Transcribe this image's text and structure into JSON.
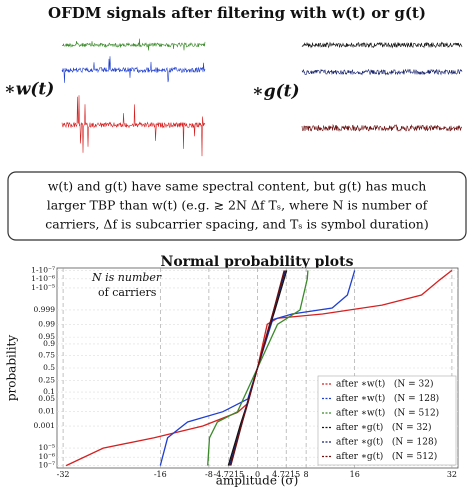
{
  "header": {
    "title": "OFDM signals after filtering with w(t) or g(t)",
    "left_label": "∗w(t)",
    "right_label": "∗g(t)"
  },
  "note": {
    "lines": [
      "w(t) and g(t) have same spectral content, but g(t) has much",
      "larger TBP than w(t)  (e.g. ≳ 2N Δf Tₛ, where N is number of",
      "carriers, Δf is subcarrier spacing, and Tₛ is symbol duration)"
    ]
  },
  "chart_data": {
    "type": "line",
    "title": "Normal probability plots",
    "xlabel": "amplitude (σ)",
    "ylabel": "probability",
    "annotations": [
      "N is number",
      "of carriers"
    ],
    "xlim": [
      -33,
      33
    ],
    "xticks": [
      -32,
      -16,
      -8,
      -4.7215,
      0,
      4.7215,
      8,
      16,
      32
    ],
    "ylim": [
      5e-08,
      0.99999995
    ],
    "yscale": "probit",
    "grid": true,
    "legend": "lower right",
    "yticks": [
      {
        "value": 1e-07,
        "label": "10⁻⁷"
      },
      {
        "value": 1e-06,
        "label": "10⁻⁶"
      },
      {
        "value": 1e-05,
        "label": "10⁻⁵"
      },
      0.001,
      0.01,
      0.05,
      0.1,
      0.25,
      0.5,
      0.75,
      0.9,
      0.95,
      0.99,
      0.999,
      {
        "value": 0.99999,
        "label": "1-10⁻⁵"
      },
      {
        "value": 0.999999,
        "label": "1-10⁻⁶"
      },
      {
        "value": 0.9999999,
        "label": "1-10⁻⁷"
      }
    ],
    "series": [
      {
        "name": "after ∗w(t)   (N = 32)",
        "color": "#d62020",
        "x": [
          -31.5,
          -25.4,
          -17,
          -9,
          -3.3,
          -1.6,
          0,
          1.6,
          3.3,
          10.7,
          20.5,
          27,
          30,
          32
        ],
        "values": [
          1e-07,
          1e-05,
          0.0001,
          0.001,
          0.009,
          0.03,
          0.5,
          0.99,
          0.996,
          0.998,
          0.9996,
          0.99995,
          0.9999987,
          0.9999999
        ]
      },
      {
        "name": "after ∗w(t)   (N = 128)",
        "color": "#1f3fd0",
        "x": [
          -16,
          -14.8,
          -11.5,
          -5.7,
          -1.6,
          0,
          2.5,
          5.7,
          12.3,
          14.8,
          16
        ],
        "values": [
          1e-07,
          0.0001,
          0.002,
          0.01,
          0.05,
          0.5,
          0.995,
          0.998,
          0.9993,
          0.99995,
          0.9999999
        ]
      },
      {
        "name": "after ∗w(t)   (N = 512)",
        "color": "#3a8a2a",
        "x": [
          -8.2,
          -7.9,
          -6.6,
          -3.3,
          0,
          3.3,
          7,
          8.2,
          8.3
        ],
        "values": [
          1e-07,
          0.0001,
          0.002,
          0.01,
          0.5,
          0.99,
          0.999,
          0.999999,
          0.9999999
        ]
      },
      {
        "name": "after ∗g(t)   (N = 32)",
        "color": "#111111",
        "x": [
          -4.8,
          -3.7,
          -2.8,
          -1.8,
          -0.9,
          0,
          0.9,
          1.8,
          2.8,
          3.7,
          4.8
        ],
        "values": [
          1e-07,
          3.17e-05,
          0.00135,
          0.0228,
          0.159,
          0.5,
          0.841,
          0.977,
          0.99865,
          0.999968,
          0.9999999
        ]
      },
      {
        "name": "after ∗g(t)   (N = 128)",
        "color": "#14206a",
        "x": [
          -4.6,
          -3.5,
          -2.6,
          -1.8,
          -0.9,
          0,
          0.9,
          1.8,
          2.6,
          3.5,
          4.6
        ],
        "values": [
          1e-07,
          3.17e-05,
          0.00135,
          0.0228,
          0.159,
          0.5,
          0.841,
          0.977,
          0.99865,
          0.999968,
          0.9999999
        ]
      },
      {
        "name": "after ∗g(t)   (N = 512)",
        "color": "#6a0e0e",
        "x": [
          -4.4,
          -3.4,
          -2.6,
          -1.7,
          -0.85,
          0,
          0.85,
          1.7,
          2.6,
          3.4,
          4.4
        ],
        "values": [
          1e-07,
          3.17e-05,
          0.00135,
          0.0228,
          0.159,
          0.5,
          0.841,
          0.977,
          0.99865,
          0.999968,
          0.9999999
        ]
      }
    ]
  }
}
